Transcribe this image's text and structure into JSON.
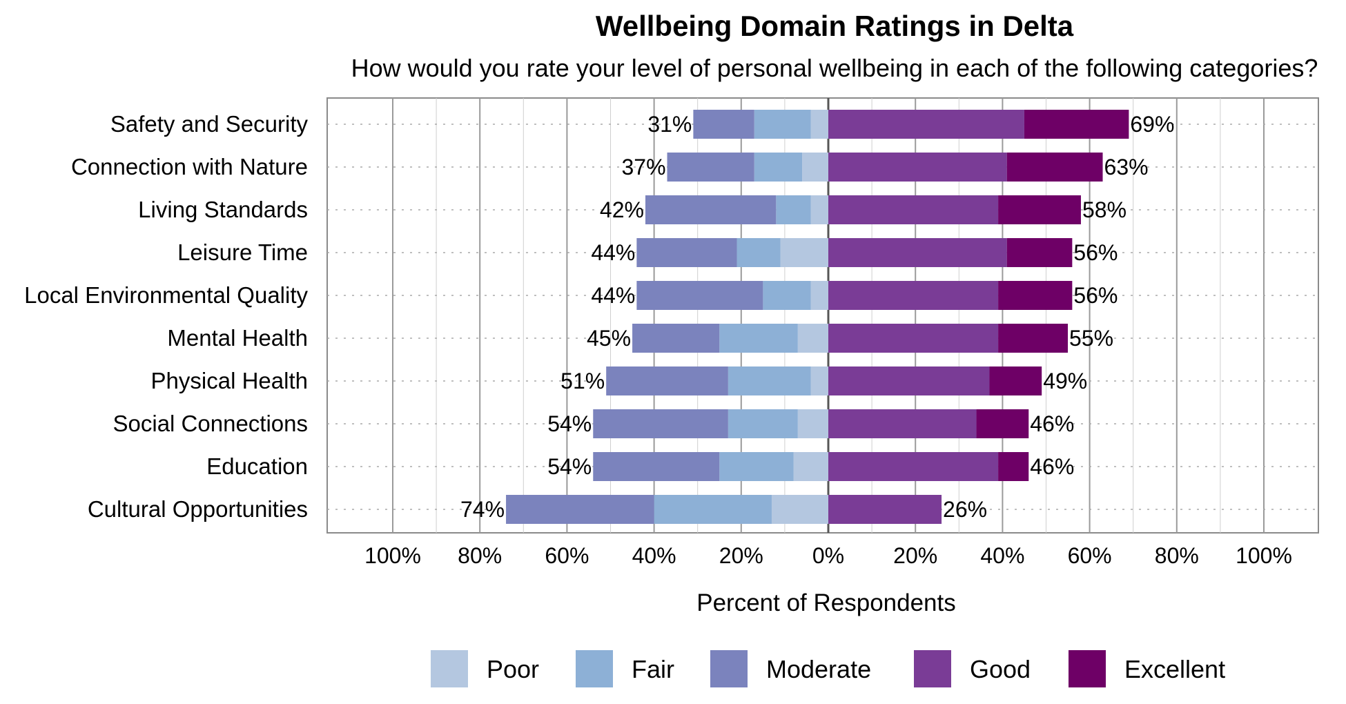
{
  "chart_data": {
    "type": "bar",
    "orientation": "horizontal-diverging",
    "title": "Wellbeing Domain Ratings in Delta",
    "subtitle": "How would you rate your level of personal wellbeing in each of the following categories?",
    "xlabel": "Percent of Respondents",
    "x_ticks": [
      "100%",
      "80%",
      "60%",
      "40%",
      "20%",
      "0%",
      "20%",
      "40%",
      "60%",
      "80%",
      "100%"
    ],
    "xlim": [
      -100,
      100
    ],
    "grid": true,
    "legend_position": "bottom",
    "categories": [
      "Safety and Security",
      "Connection with Nature",
      "Living Standards",
      "Leisure Time",
      "Local Environmental Quality",
      "Mental Health",
      "Physical Health",
      "Social Connections",
      "Education",
      "Cultural Opportunities"
    ],
    "series": [
      {
        "name": "Poor",
        "color": "#b4c7e0",
        "side": "negative",
        "values": [
          4,
          6,
          4,
          11,
          4,
          7,
          4,
          7,
          8,
          13
        ]
      },
      {
        "name": "Fair",
        "color": "#8db0d6",
        "side": "negative",
        "values": [
          13,
          11,
          8,
          10,
          11,
          18,
          19,
          16,
          17,
          27
        ]
      },
      {
        "name": "Moderate",
        "color": "#7b83bd",
        "side": "negative",
        "values": [
          14,
          20,
          30,
          23,
          29,
          20,
          28,
          31,
          29,
          34
        ]
      },
      {
        "name": "Good",
        "color": "#7a3c96",
        "side": "positive",
        "values": [
          45,
          41,
          39,
          41,
          39,
          39,
          37,
          34,
          39,
          26
        ]
      },
      {
        "name": "Excellent",
        "color": "#6e0066",
        "side": "positive",
        "values": [
          24,
          22,
          19,
          15,
          17,
          16,
          12,
          12,
          7,
          0
        ]
      }
    ],
    "negative_totals": [
      "31%",
      "37%",
      "42%",
      "44%",
      "44%",
      "45%",
      "51%",
      "54%",
      "54%",
      "74%"
    ],
    "positive_totals": [
      "69%",
      "63%",
      "58%",
      "56%",
      "56%",
      "55%",
      "49%",
      "46%",
      "46%",
      "26%"
    ]
  }
}
